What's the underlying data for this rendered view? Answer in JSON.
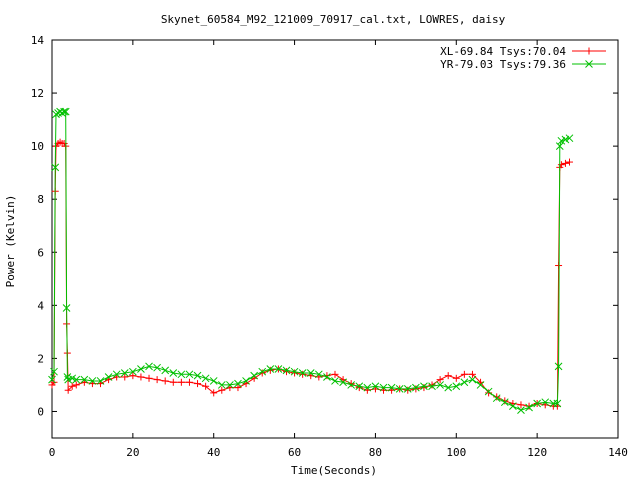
{
  "chart_data": {
    "type": "line",
    "title": "Skynet_60584_M92_121009_70917_cal.txt, LOWRES, daisy",
    "xlabel": "Time(Seconds)",
    "ylabel": "Power (Kelvin)",
    "xlim": [
      0,
      140
    ],
    "ylim": [
      -1,
      14
    ],
    "xticks": [
      "0",
      "20",
      "40",
      "60",
      "80",
      "100",
      "120",
      "140"
    ],
    "yticks": [
      "0",
      "2",
      "4",
      "6",
      "8",
      "10",
      "12",
      "14"
    ],
    "grid": false,
    "legend_position": "top-right",
    "series": [
      {
        "name": "XL-69.84 Tsys:70.04",
        "color": "#ff0000",
        "marker": "plus",
        "points": [
          [
            0.0,
            1.0
          ],
          [
            0.5,
            1.1
          ],
          [
            0.8,
            8.3
          ],
          [
            1.0,
            10.0
          ],
          [
            1.5,
            10.1
          ],
          [
            2.0,
            10.15
          ],
          [
            2.5,
            10.1
          ],
          [
            3.0,
            10.1
          ],
          [
            3.4,
            10.0
          ],
          [
            3.6,
            3.3
          ],
          [
            3.8,
            2.2
          ],
          [
            4.0,
            0.8
          ],
          [
            5.0,
            0.95
          ],
          [
            6.0,
            1.0
          ],
          [
            8.0,
            1.1
          ],
          [
            10.0,
            1.05
          ],
          [
            12.0,
            1.05
          ],
          [
            14.0,
            1.2
          ],
          [
            16.0,
            1.3
          ],
          [
            18.0,
            1.3
          ],
          [
            20.0,
            1.35
          ],
          [
            22.0,
            1.3
          ],
          [
            24.0,
            1.25
          ],
          [
            26.0,
            1.2
          ],
          [
            28.0,
            1.15
          ],
          [
            30.0,
            1.1
          ],
          [
            32.0,
            1.1
          ],
          [
            34.0,
            1.1
          ],
          [
            36.0,
            1.05
          ],
          [
            38.0,
            0.95
          ],
          [
            40.0,
            0.7
          ],
          [
            42.0,
            0.8
          ],
          [
            44.0,
            0.9
          ],
          [
            46.0,
            0.9
          ],
          [
            48.0,
            1.05
          ],
          [
            50.0,
            1.25
          ],
          [
            52.0,
            1.45
          ],
          [
            54.0,
            1.55
          ],
          [
            56.0,
            1.6
          ],
          [
            58.0,
            1.5
          ],
          [
            60.0,
            1.45
          ],
          [
            62.0,
            1.4
          ],
          [
            64.0,
            1.35
          ],
          [
            66.0,
            1.3
          ],
          [
            68.0,
            1.35
          ],
          [
            70.0,
            1.4
          ],
          [
            72.0,
            1.2
          ],
          [
            74.0,
            1.05
          ],
          [
            76.0,
            0.9
          ],
          [
            78.0,
            0.8
          ],
          [
            80.0,
            0.85
          ],
          [
            82.0,
            0.8
          ],
          [
            84.0,
            0.8
          ],
          [
            86.0,
            0.85
          ],
          [
            88.0,
            0.8
          ],
          [
            90.0,
            0.85
          ],
          [
            92.0,
            0.9
          ],
          [
            94.0,
            1.0
          ],
          [
            96.0,
            1.2
          ],
          [
            98.0,
            1.35
          ],
          [
            100.0,
            1.25
          ],
          [
            102.0,
            1.4
          ],
          [
            104.0,
            1.4
          ],
          [
            106.0,
            1.1
          ],
          [
            108.0,
            0.7
          ],
          [
            110.0,
            0.55
          ],
          [
            112.0,
            0.4
          ],
          [
            114.0,
            0.3
          ],
          [
            116.0,
            0.25
          ],
          [
            118.0,
            0.2
          ],
          [
            120.0,
            0.3
          ],
          [
            122.0,
            0.25
          ],
          [
            124.0,
            0.2
          ],
          [
            125.0,
            0.2
          ],
          [
            125.3,
            5.5
          ],
          [
            125.6,
            9.2
          ],
          [
            126.0,
            9.3
          ],
          [
            127.0,
            9.35
          ],
          [
            128.0,
            9.4
          ]
        ]
      },
      {
        "name": "YR-79.03 Tsys:79.36",
        "color": "#00c000",
        "marker": "cross",
        "points": [
          [
            0.0,
            1.2
          ],
          [
            0.5,
            1.5
          ],
          [
            0.8,
            9.2
          ],
          [
            1.0,
            11.2
          ],
          [
            1.5,
            11.25
          ],
          [
            2.0,
            11.3
          ],
          [
            2.5,
            11.25
          ],
          [
            3.0,
            11.3
          ],
          [
            3.4,
            11.3
          ],
          [
            3.6,
            3.9
          ],
          [
            3.8,
            1.3
          ],
          [
            4.0,
            1.2
          ],
          [
            5.0,
            1.25
          ],
          [
            6.0,
            1.2
          ],
          [
            8.0,
            1.2
          ],
          [
            10.0,
            1.15
          ],
          [
            12.0,
            1.15
          ],
          [
            14.0,
            1.3
          ],
          [
            16.0,
            1.4
          ],
          [
            18.0,
            1.45
          ],
          [
            20.0,
            1.5
          ],
          [
            22.0,
            1.6
          ],
          [
            24.0,
            1.7
          ],
          [
            26.0,
            1.65
          ],
          [
            28.0,
            1.55
          ],
          [
            30.0,
            1.45
          ],
          [
            32.0,
            1.4
          ],
          [
            34.0,
            1.4
          ],
          [
            36.0,
            1.35
          ],
          [
            38.0,
            1.25
          ],
          [
            40.0,
            1.15
          ],
          [
            42.0,
            1.0
          ],
          [
            44.0,
            1.0
          ],
          [
            46.0,
            1.05
          ],
          [
            48.0,
            1.15
          ],
          [
            50.0,
            1.35
          ],
          [
            52.0,
            1.5
          ],
          [
            54.0,
            1.6
          ],
          [
            56.0,
            1.6
          ],
          [
            58.0,
            1.55
          ],
          [
            60.0,
            1.5
          ],
          [
            62.0,
            1.45
          ],
          [
            64.0,
            1.45
          ],
          [
            66.0,
            1.4
          ],
          [
            68.0,
            1.3
          ],
          [
            70.0,
            1.15
          ],
          [
            72.0,
            1.1
          ],
          [
            74.0,
            1.0
          ],
          [
            76.0,
            0.95
          ],
          [
            78.0,
            0.9
          ],
          [
            80.0,
            0.95
          ],
          [
            82.0,
            0.9
          ],
          [
            84.0,
            0.9
          ],
          [
            86.0,
            0.85
          ],
          [
            88.0,
            0.85
          ],
          [
            90.0,
            0.9
          ],
          [
            92.0,
            0.95
          ],
          [
            94.0,
            0.95
          ],
          [
            96.0,
            1.0
          ],
          [
            98.0,
            0.9
          ],
          [
            100.0,
            0.95
          ],
          [
            102.0,
            1.1
          ],
          [
            104.0,
            1.2
          ],
          [
            106.0,
            1.0
          ],
          [
            108.0,
            0.75
          ],
          [
            110.0,
            0.5
          ],
          [
            112.0,
            0.35
          ],
          [
            114.0,
            0.2
          ],
          [
            116.0,
            0.05
          ],
          [
            118.0,
            0.15
          ],
          [
            120.0,
            0.3
          ],
          [
            122.0,
            0.35
          ],
          [
            124.0,
            0.3
          ],
          [
            125.0,
            0.3
          ],
          [
            125.3,
            1.7
          ],
          [
            125.6,
            10.0
          ],
          [
            126.0,
            10.2
          ],
          [
            127.0,
            10.25
          ],
          [
            128.0,
            10.3
          ]
        ]
      }
    ]
  }
}
